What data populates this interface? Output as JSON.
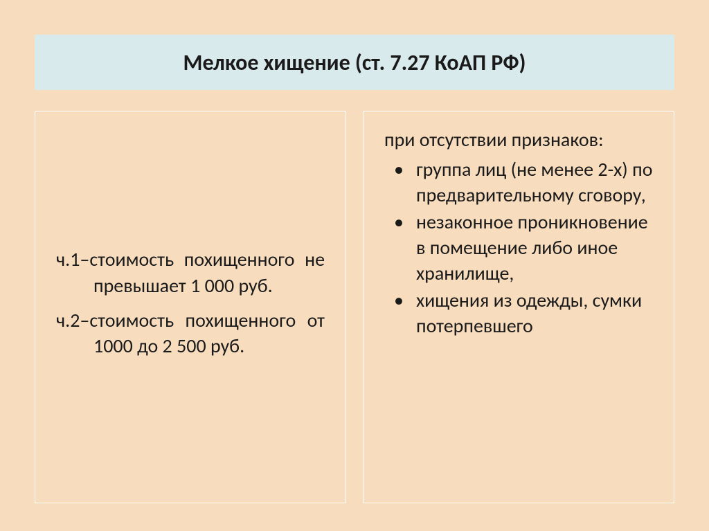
{
  "slide": {
    "title": "Мелкое хищение (ст. 7.27 КоАП РФ)",
    "background_color": "#f8dcbe",
    "title_bar_color": "#d9eaec",
    "title_fontsize": 32,
    "body_fontsize": 28,
    "text_color": "#1a1a1a"
  },
  "left_column": {
    "items": [
      "ч.1–стоимость похищенного не превышает 1 000 руб.",
      "ч.2–стоимость похищенного от 1000 до 2 500 руб."
    ]
  },
  "right_column": {
    "intro": "при отсутствии признаков:",
    "bullets": [
      "группа лиц (не менее 2-х) по предварительному сговору,",
      "незаконное проникновение в помещение либо иное хранилище,",
      "хищения из одежды, сумки потерпевшего"
    ]
  }
}
